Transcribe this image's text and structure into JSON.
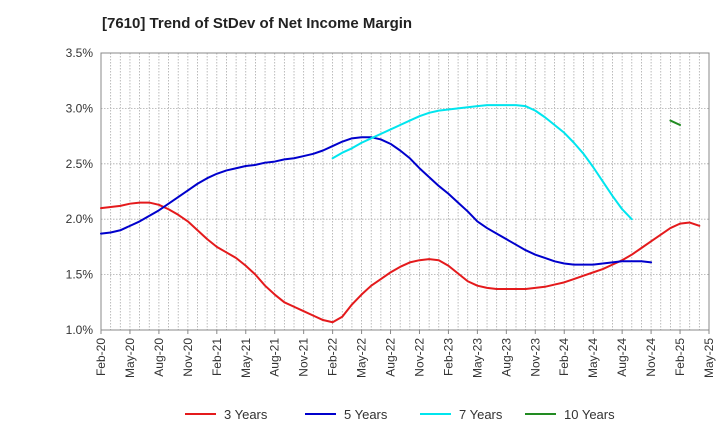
{
  "chart_data": {
    "type": "line",
    "title": "[7610]  Trend of StDev of Net Income Margin",
    "xlabel": "",
    "ylabel": "",
    "x_ticks": [
      "Feb-20",
      "May-20",
      "Aug-20",
      "Nov-20",
      "Feb-21",
      "May-21",
      "Aug-21",
      "Nov-21",
      "Feb-22",
      "May-22",
      "Aug-22",
      "Nov-22",
      "Feb-23",
      "May-23",
      "Aug-23",
      "Nov-23",
      "Feb-24",
      "May-24",
      "Aug-24",
      "Nov-24",
      "Feb-25",
      "May-25"
    ],
    "y_ticks": [
      "1.0%",
      "1.5%",
      "2.0%",
      "2.5%",
      "3.0%",
      "3.5%"
    ],
    "ylim": [
      1.0,
      3.5
    ],
    "grid": true,
    "legend_position": "bottom",
    "series": [
      {
        "name": "3 Years",
        "color": "#e41a1c",
        "start": "Feb-20",
        "values": [
          2.1,
          2.11,
          2.12,
          2.14,
          2.15,
          2.15,
          2.13,
          2.09,
          2.04,
          1.98,
          1.9,
          1.82,
          1.75,
          1.7,
          1.65,
          1.58,
          1.5,
          1.4,
          1.32,
          1.25,
          1.21,
          1.17,
          1.13,
          1.09,
          1.07,
          1.12,
          1.23,
          1.32,
          1.4,
          1.46,
          1.52,
          1.57,
          1.61,
          1.63,
          1.64,
          1.63,
          1.58,
          1.51,
          1.44,
          1.4,
          1.38,
          1.37,
          1.37,
          1.37,
          1.37,
          1.38,
          1.39,
          1.41,
          1.43,
          1.46,
          1.49,
          1.52,
          1.55,
          1.59,
          1.63,
          1.68,
          1.74,
          1.8,
          1.86,
          1.92,
          1.96,
          1.97,
          1.94
        ]
      },
      {
        "name": "5 Years",
        "color": "#0000cc",
        "start": "Feb-20",
        "values": [
          1.87,
          1.88,
          1.9,
          1.94,
          1.98,
          2.03,
          2.08,
          2.14,
          2.2,
          2.26,
          2.32,
          2.37,
          2.41,
          2.44,
          2.46,
          2.48,
          2.49,
          2.51,
          2.52,
          2.54,
          2.55,
          2.57,
          2.59,
          2.62,
          2.66,
          2.7,
          2.73,
          2.74,
          2.74,
          2.72,
          2.68,
          2.62,
          2.55,
          2.46,
          2.38,
          2.3,
          2.23,
          2.15,
          2.07,
          1.98,
          1.92,
          1.87,
          1.82,
          1.77,
          1.72,
          1.68,
          1.65,
          1.62,
          1.6,
          1.59,
          1.59,
          1.59,
          1.6,
          1.61,
          1.62,
          1.62,
          1.62,
          1.61
        ]
      },
      {
        "name": "7 Years",
        "color": "#00e5ee",
        "start": "Feb-22",
        "values": [
          2.55,
          2.6,
          2.64,
          2.69,
          2.73,
          2.77,
          2.81,
          2.85,
          2.89,
          2.93,
          2.96,
          2.98,
          2.99,
          3.0,
          3.01,
          3.02,
          3.03,
          3.03,
          3.03,
          3.03,
          3.02,
          2.98,
          2.92,
          2.85,
          2.78,
          2.69,
          2.59,
          2.47,
          2.34,
          2.21,
          2.09,
          2.0
        ]
      },
      {
        "name": "10 Years",
        "color": "#228b22",
        "start": "Jan-25",
        "values": [
          2.89,
          2.85
        ]
      }
    ]
  }
}
